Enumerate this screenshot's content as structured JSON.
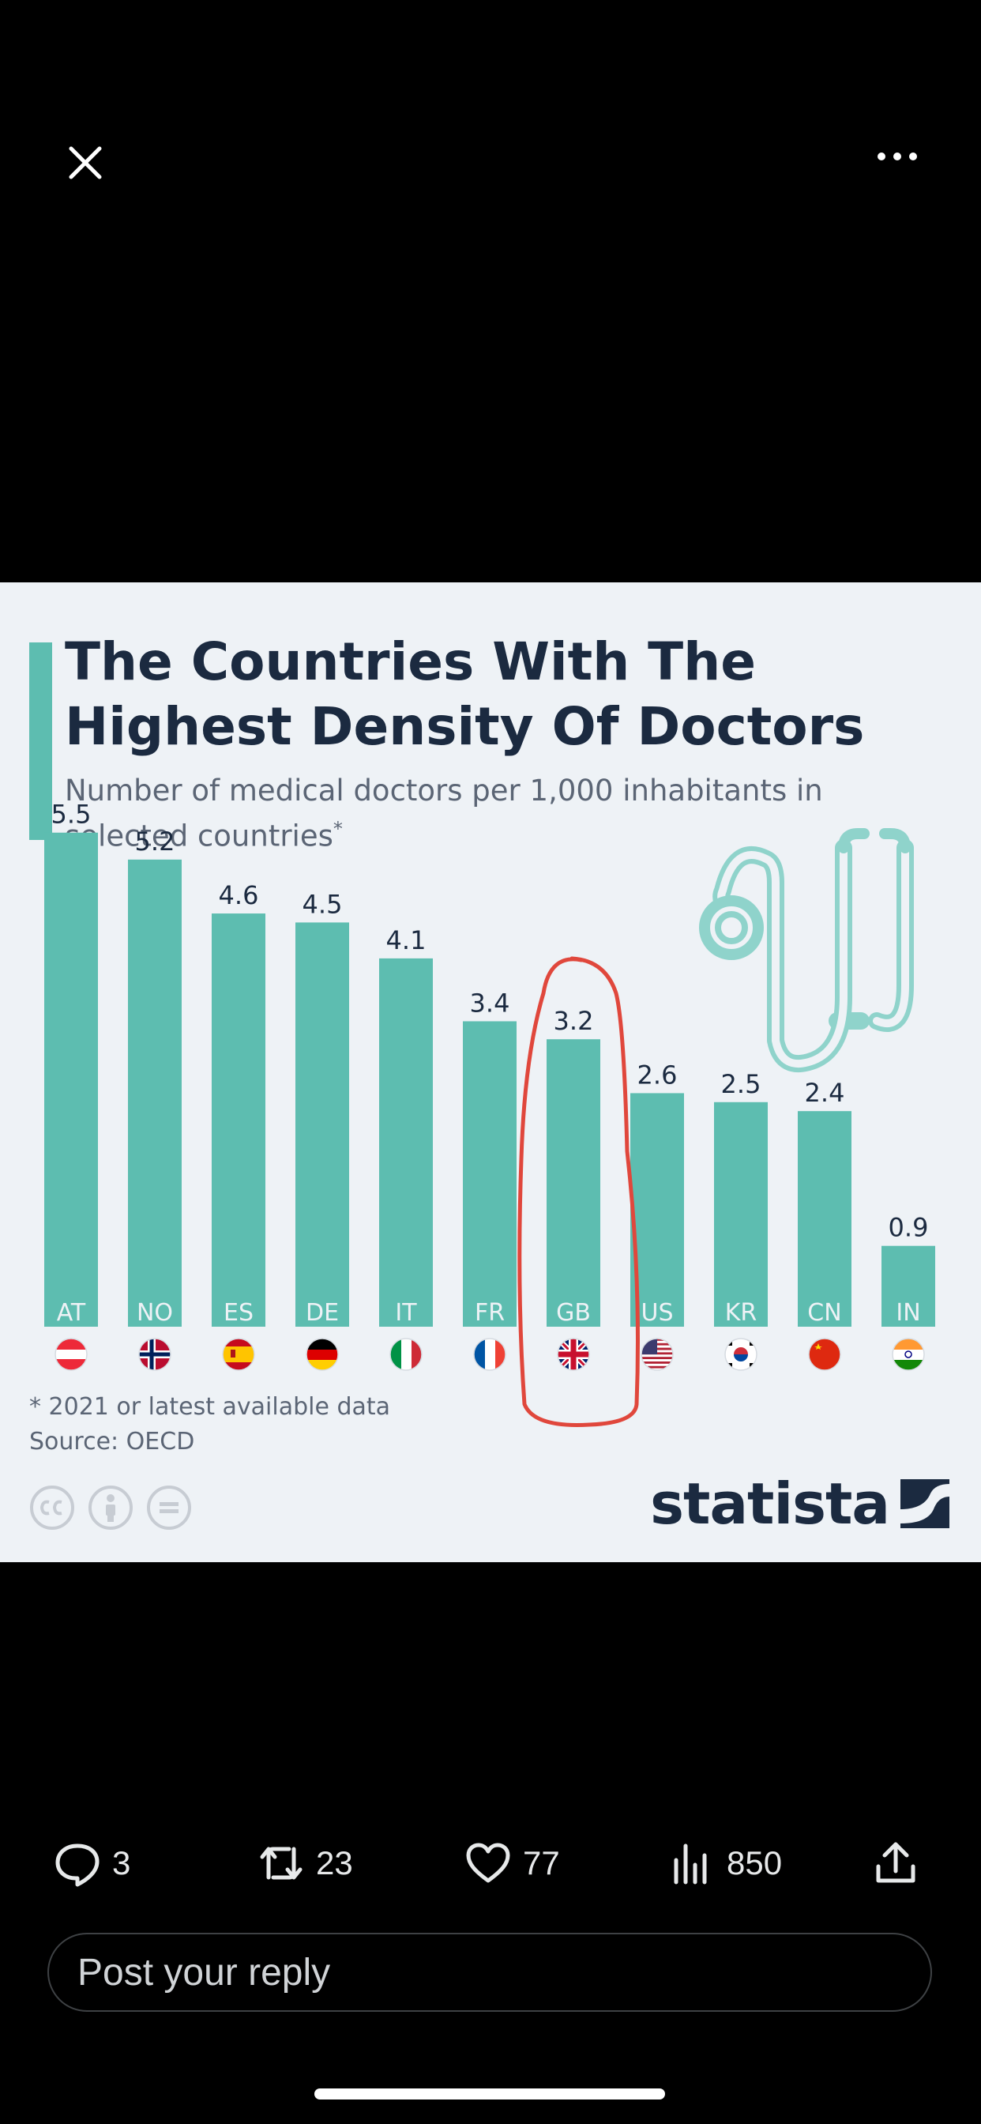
{
  "viewer": {
    "close_icon": "close-icon",
    "more_icon": "more-horizontal-icon"
  },
  "infographic": {
    "title": "The Countries With The Highest Density Of Doctors",
    "subtitle": "Number of medical doctors per 1,000 inhabitants in selected countries",
    "subtitle_mark": "*",
    "footnote": "* 2021 or latest available data",
    "source": "Source: OECD",
    "brand": "statista",
    "license_icons": [
      "cc-icon",
      "attribution-icon",
      "no-derivatives-icon"
    ]
  },
  "chart_data": {
    "type": "bar",
    "title": "The Countries With The Highest Density Of Doctors",
    "subtitle": "Number of medical doctors per 1,000 inhabitants in selected countries*",
    "categories": [
      "AT",
      "NO",
      "ES",
      "DE",
      "IT",
      "FR",
      "GB",
      "US",
      "KR",
      "CN",
      "IN"
    ],
    "values": [
      5.5,
      5.2,
      4.6,
      4.5,
      4.1,
      3.4,
      3.2,
      2.6,
      2.5,
      2.4,
      0.9
    ],
    "value_labels": [
      "5.5",
      "5.2",
      "4.6",
      "4.5",
      "4.1",
      "3.4",
      "3.2",
      "2.6",
      "2.5",
      "2.4",
      "0.9"
    ],
    "flags": [
      "austria-flag",
      "norway-flag",
      "spain-flag",
      "germany-flag",
      "italy-flag",
      "france-flag",
      "uk-flag",
      "usa-flag",
      "south-korea-flag",
      "china-flag",
      "india-flag"
    ],
    "ylim": [
      0,
      5.7
    ],
    "grid": false,
    "bar_color": "#5dbdb0",
    "annotation": {
      "type": "hand-drawn circle",
      "target": "GB",
      "color": "#e0473c"
    }
  },
  "actions": {
    "reply": {
      "icon": "reply-icon",
      "count": "3"
    },
    "repost": {
      "icon": "repost-icon",
      "count": "23"
    },
    "like": {
      "icon": "heart-icon",
      "count": "77"
    },
    "views": {
      "icon": "views-icon",
      "count": "850"
    },
    "share": {
      "icon": "share-icon"
    }
  },
  "reply_box": {
    "placeholder": "Post your reply"
  },
  "colors": {
    "accent": "#5dbdb0",
    "title": "#1b2a40",
    "annotation": "#e0473c",
    "background": "#000000"
  }
}
